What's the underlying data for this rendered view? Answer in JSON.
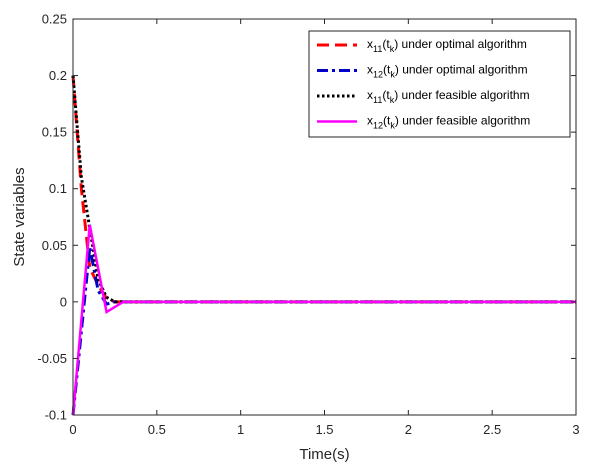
{
  "chart_data": {
    "type": "line",
    "xlabel": "Time(s)",
    "ylabel": "State variables",
    "xlim": [
      0,
      3
    ],
    "ylim": [
      -0.1,
      0.25
    ],
    "xticks": [
      0,
      0.5,
      1,
      1.5,
      2,
      2.5,
      3
    ],
    "xtick_labels": [
      "0",
      "0.5",
      "1",
      "1.5",
      "2",
      "2.5",
      "3"
    ],
    "yticks": [
      -0.1,
      -0.05,
      0,
      0.05,
      0.1,
      0.15,
      0.2,
      0.25
    ],
    "ytick_labels": [
      "-0.1",
      "-0.05",
      "0",
      "0.05",
      "0.1",
      "0.15",
      "0.2",
      "0.25"
    ],
    "grid": false,
    "legend_position": "top-right",
    "series": [
      {
        "legend": {
          "var": "x",
          "var_sub": "11",
          "arg": "(t",
          "arg_sub": "k",
          "arg_close": ")",
          "suffix": " under optimal algorithm"
        },
        "color": "#ff0000",
        "style": "dashed",
        "x": [
          0,
          0.05,
          0.1,
          0.15,
          0.2,
          0.25,
          0.3,
          3
        ],
        "y": [
          0.2,
          0.1,
          0.03,
          0.015,
          0.003,
          0.0,
          0.0,
          0.0
        ]
      },
      {
        "legend": {
          "var": "x",
          "var_sub": "12",
          "arg": "(t",
          "arg_sub": "k",
          "arg_close": ")",
          "suffix": " under optimal algorithm"
        },
        "color": "#0000cc",
        "style": "dashdot",
        "x": [
          0,
          0.1,
          0.15,
          0.2,
          0.25,
          0.3,
          3
        ],
        "y": [
          -0.1,
          0.048,
          0.01,
          -0.002,
          0.0,
          0.0,
          0.0
        ]
      },
      {
        "legend": {
          "var": "x",
          "var_sub": "11",
          "arg": "(t",
          "arg_sub": "k",
          "arg_close": ")",
          "suffix": " under feasible algorithm"
        },
        "color": "#000000",
        "style": "dotted",
        "x": [
          0,
          0.05,
          0.1,
          0.15,
          0.2,
          0.25,
          0.3,
          3
        ],
        "y": [
          0.2,
          0.11,
          0.065,
          0.02,
          0.004,
          0.0,
          0.0,
          0.0
        ]
      },
      {
        "legend": {
          "var": "x",
          "var_sub": "12",
          "arg": "(t",
          "arg_sub": "k",
          "arg_close": ")",
          "suffix": " under feasible algorithm"
        },
        "color": "#ff00ff",
        "style": "solid",
        "x": [
          0,
          0.1,
          0.2,
          0.3,
          3
        ],
        "y": [
          -0.1,
          0.068,
          -0.009,
          0.0,
          0.0
        ]
      }
    ]
  }
}
